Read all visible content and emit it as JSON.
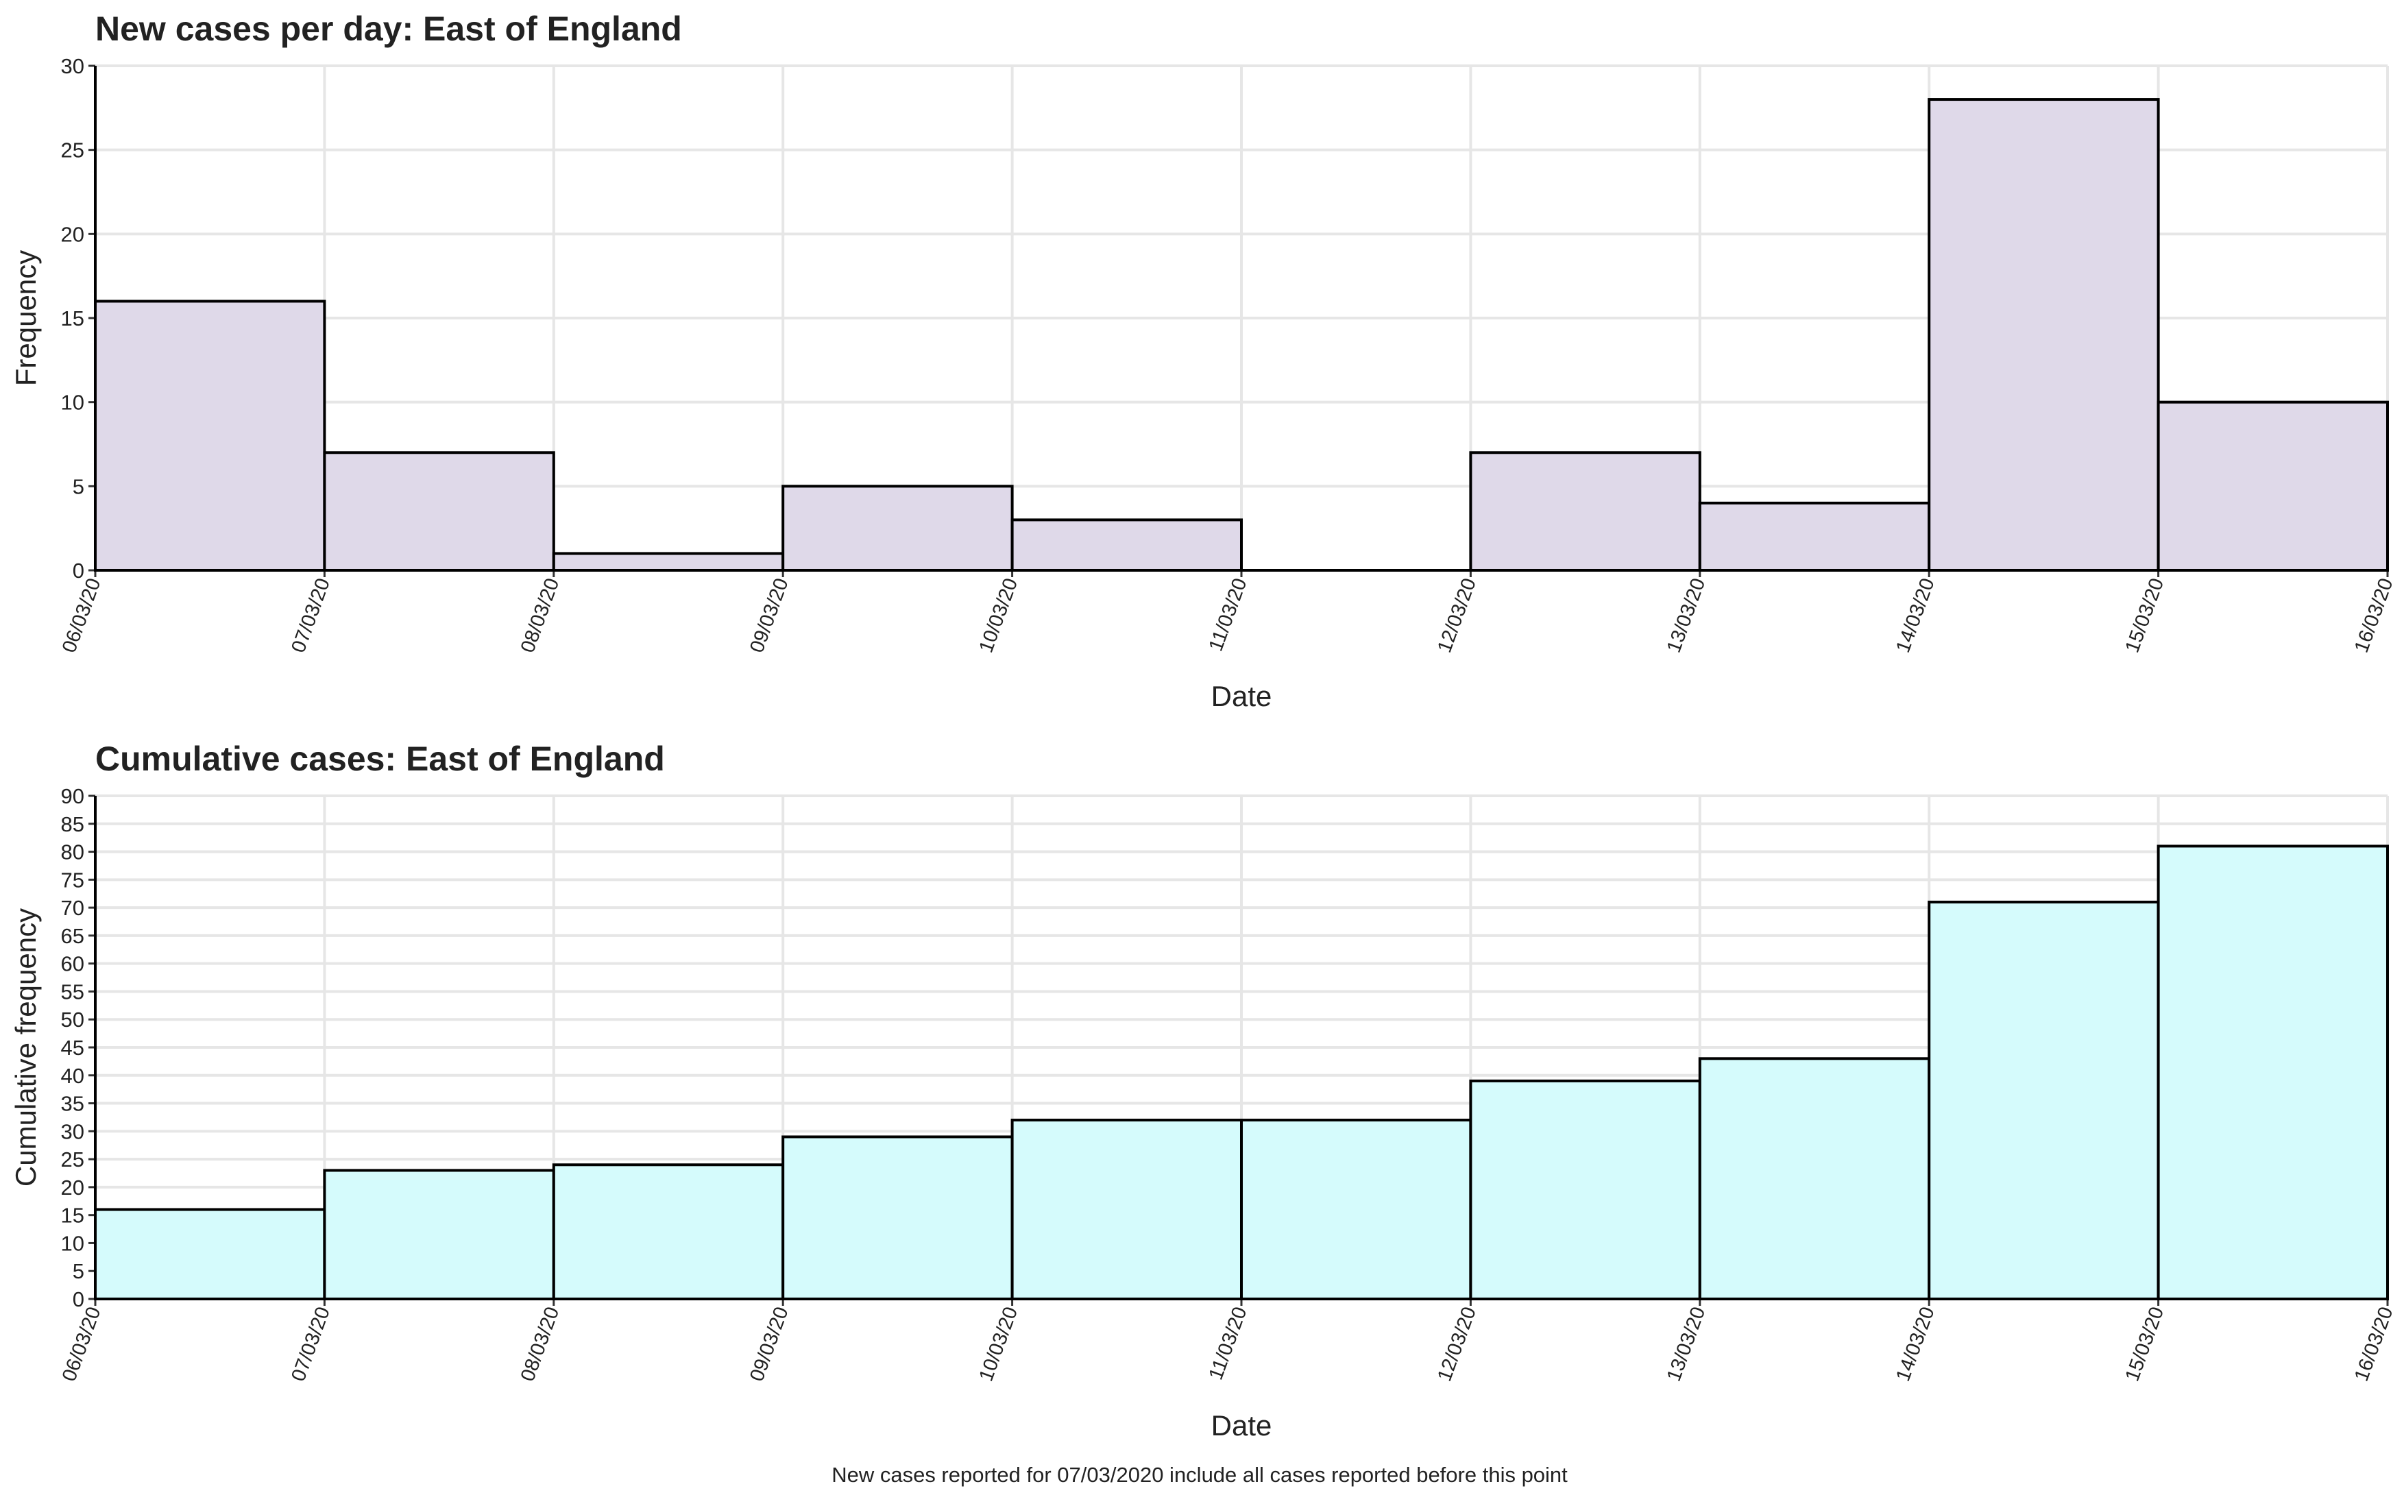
{
  "chart_data": [
    {
      "type": "histogram",
      "title": "New cases per day: East of England",
      "xlabel": "Date",
      "ylabel": "Frequency",
      "bins": [
        "06/03/20",
        "07/03/20",
        "08/03/20",
        "09/03/20",
        "10/03/20",
        "11/03/20",
        "12/03/20",
        "13/03/20",
        "14/03/20",
        "15/03/20",
        "16/03/20"
      ],
      "values": [
        16,
        7,
        1,
        5,
        3,
        0,
        7,
        4,
        28,
        10
      ],
      "color": "#dfd9e9",
      "ylim": [
        0,
        30
      ],
      "yticks": [
        0,
        5,
        10,
        15,
        20,
        25,
        30
      ],
      "grid": true
    },
    {
      "type": "histogram",
      "title": "Cumulative cases: East of England",
      "xlabel": "Date",
      "ylabel": "Cumulative frequency",
      "bins": [
        "06/03/20",
        "07/03/20",
        "08/03/20",
        "09/03/20",
        "10/03/20",
        "11/03/20",
        "12/03/20",
        "13/03/20",
        "14/03/20",
        "15/03/20",
        "16/03/20"
      ],
      "values": [
        16,
        23,
        24,
        29,
        32,
        32,
        39,
        43,
        71,
        81
      ],
      "color": "#d5fbfc",
      "ylim": [
        0,
        90
      ],
      "yticks": [
        0,
        5,
        10,
        15,
        20,
        25,
        30,
        35,
        40,
        45,
        50,
        55,
        60,
        65,
        70,
        75,
        80,
        85,
        90
      ],
      "grid": true
    }
  ],
  "footnote": "New cases reported for 07/03/2020 include all cases reported before this point"
}
